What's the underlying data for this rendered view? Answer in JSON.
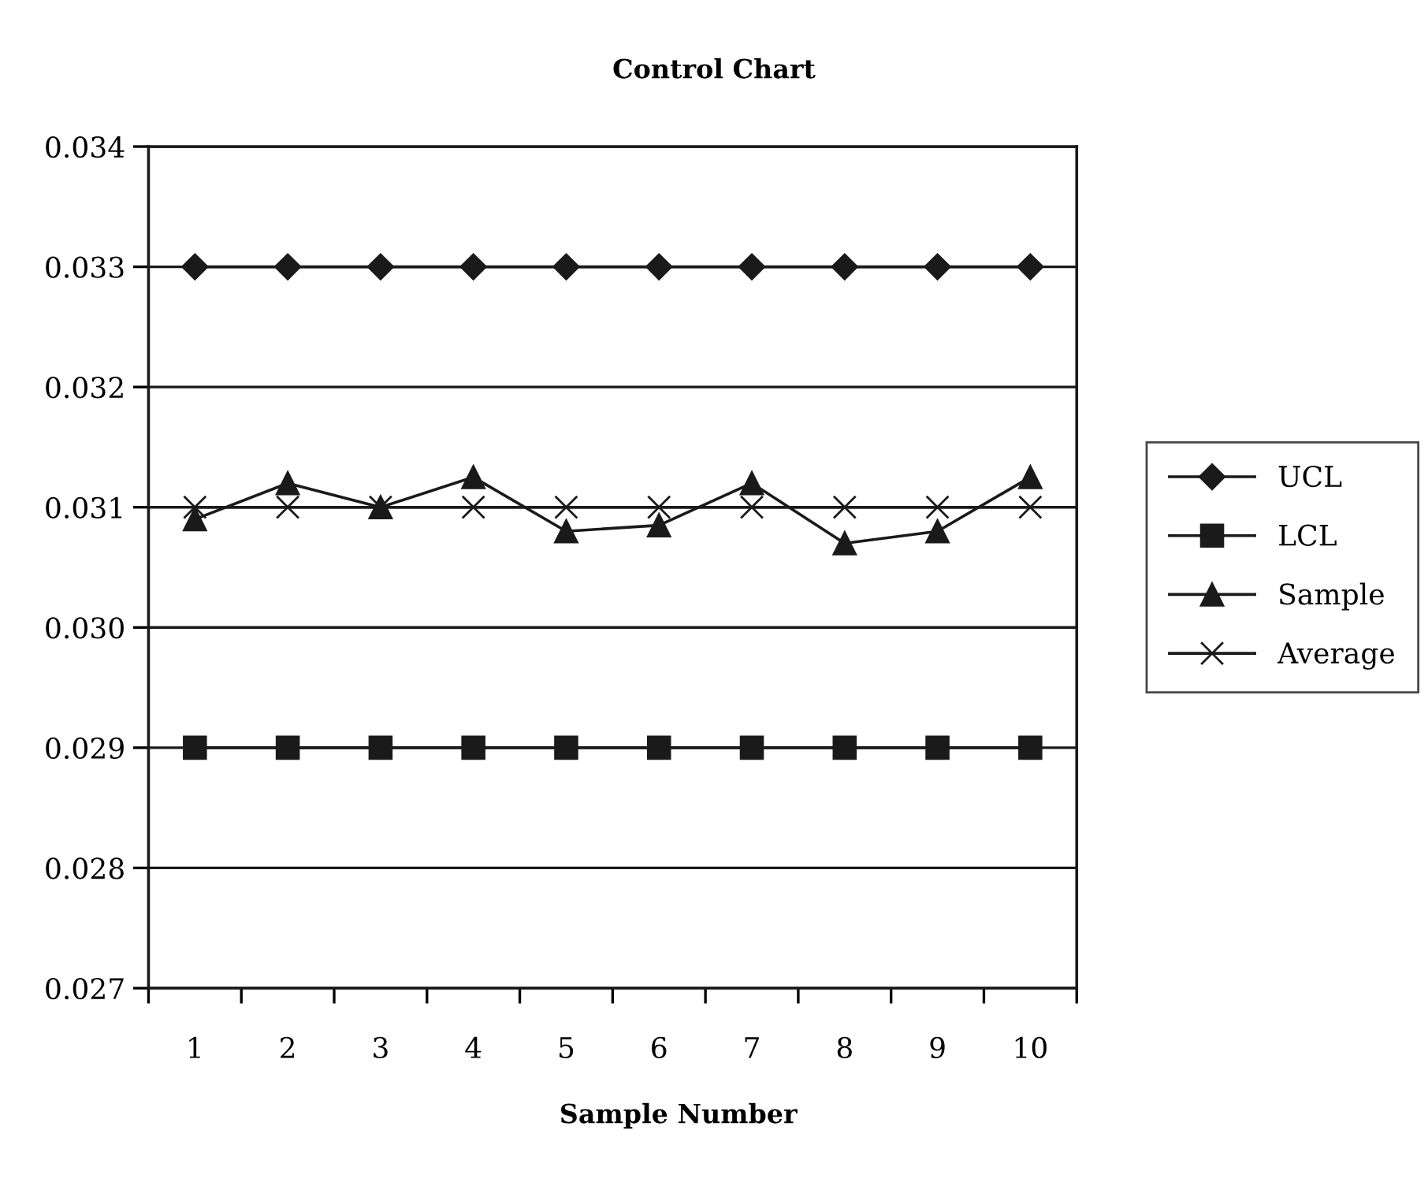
{
  "chart_data": {
    "type": "line",
    "title": "Control Chart",
    "xlabel": "Sample Number",
    "categories": [
      "1",
      "2",
      "3",
      "4",
      "5",
      "6",
      "7",
      "8",
      "9",
      "10"
    ],
    "series": [
      {
        "name": "UCL",
        "color": "#1a1a1a",
        "marker": "diamond",
        "values": [
          0.033,
          0.033,
          0.033,
          0.033,
          0.033,
          0.033,
          0.033,
          0.033,
          0.033,
          0.033
        ]
      },
      {
        "name": "LCL",
        "color": "#1a1a1a",
        "marker": "square",
        "values": [
          0.029,
          0.029,
          0.029,
          0.029,
          0.029,
          0.029,
          0.029,
          0.029,
          0.029,
          0.029
        ]
      },
      {
        "name": "Sample",
        "color": "#1a1a1a",
        "marker": "triangle",
        "values": [
          0.0309,
          0.0312,
          0.031,
          0.03125,
          0.0308,
          0.03085,
          0.0312,
          0.0307,
          0.0308,
          0.03125
        ]
      },
      {
        "name": "Average",
        "color": "#1a1a1a",
        "marker": "cross",
        "values": [
          0.031,
          0.031,
          0.031,
          0.031,
          0.031,
          0.031,
          0.031,
          0.031,
          0.031,
          0.031
        ]
      }
    ],
    "ylim": [
      0.027,
      0.034
    ],
    "yticks": [
      {
        "value": 0.027,
        "label": "0.027"
      },
      {
        "value": 0.028,
        "label": "0.028"
      },
      {
        "value": 0.029,
        "label": "0.029"
      },
      {
        "value": 0.03,
        "label": "0.030"
      },
      {
        "value": 0.031,
        "label": "0.031"
      },
      {
        "value": 0.032,
        "label": "0.032"
      },
      {
        "value": 0.033,
        "label": "0.033"
      },
      {
        "value": 0.034,
        "label": "0.034"
      }
    ],
    "grid": "y",
    "legend": "right",
    "line_style": "solid"
  }
}
